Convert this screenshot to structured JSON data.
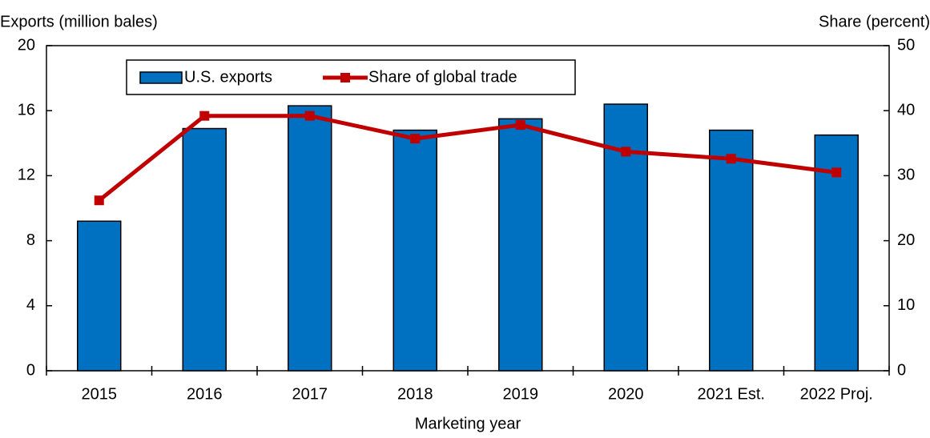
{
  "chart_data": {
    "type": "bar-line",
    "y_label": "Exports (million bales)",
    "y2_label": "Share (percent)",
    "x_label": "Marketing year",
    "categories": [
      "2015",
      "2016",
      "2017",
      "2018",
      "2019",
      "2020",
      "2021 Est.",
      "2022 Proj."
    ],
    "series": [
      {
        "name": "U.S. exports",
        "type": "bar",
        "color": "#0070c0",
        "values": [
          9.2,
          14.9,
          16.3,
          14.8,
          15.5,
          16.4,
          14.8,
          14.5
        ]
      },
      {
        "name": "Share of global trade",
        "type": "line",
        "axis": "y2",
        "color": "#c00000",
        "values": [
          26.2,
          39.2,
          39.2,
          35.7,
          37.8,
          33.7,
          32.6,
          30.5
        ]
      }
    ],
    "ylim": [
      0,
      20
    ],
    "yticks": [
      0,
      4,
      8,
      12,
      16,
      20
    ],
    "y2lim": [
      0,
      50
    ],
    "y2ticks": [
      0,
      10,
      20,
      30,
      40,
      50
    ]
  }
}
